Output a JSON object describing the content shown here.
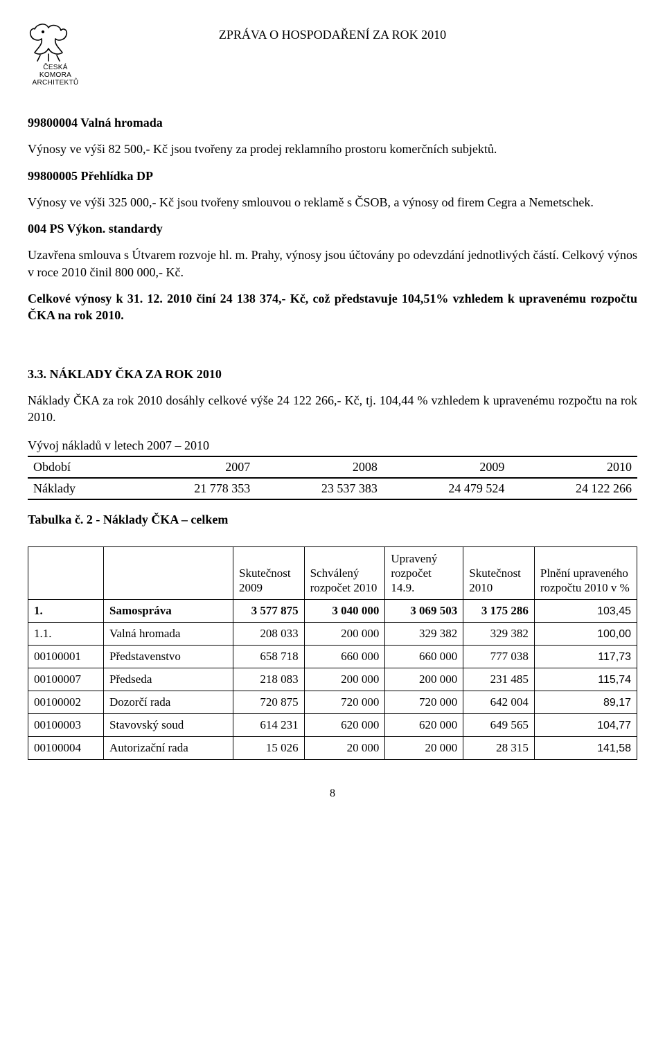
{
  "header": {
    "logo_caption_line1": "ČESKÁ KOMORA",
    "logo_caption_line2": "ARCHITEKTŮ",
    "report_title": "ZPRÁVA O HOSPODAŘENÍ ZA  ROK 2010"
  },
  "body": {
    "p1_heading": "99800004 Valná hromada",
    "p1_text": "Výnosy ve výši 82 500,- Kč jsou tvořeny za prodej reklamního prostoru komerčních subjektů.",
    "p2_heading": "99800005 Přehlídka DP",
    "p2_text": "Výnosy ve výši 325 000,- Kč jsou tvořeny smlouvou o reklamě s ČSOB, a výnosy od firem Cegra a  Nemetschek.",
    "p3_heading": "004 PS Výkon. standardy",
    "p3_text": "Uzavřena smlouva s Útvarem rozvoje hl. m. Prahy, výnosy jsou účtovány po odevzdání jednotlivých částí. Celkový výnos  v roce 2010 činil 800 000,- Kč.",
    "p4_bold": "Celkové výnosy k 31. 12. 2010 činí 24 138 374,- Kč, což představuje 104,51% vzhledem k upravenému  rozpočtu ČKA na rok 2010.",
    "section33_title": "3.3.   NÁKLADY ČKA  ZA  ROK 2010",
    "p5_text": "Náklady ČKA za rok 2010 dosáhly celkové výše 24 122 266,- Kč, tj. 104,44 % vzhledem k upravenému rozpočtu na rok 2010.",
    "period_caption": "Vývoj nákladů v letech 2007 – 2010"
  },
  "period_table": {
    "row1": [
      "Období",
      "2007",
      "2008",
      "2009",
      "2010"
    ],
    "row2": [
      "Náklady",
      "21 778 353",
      "23 537 383",
      "24 479 524",
      "24 122 266"
    ]
  },
  "table2_caption": "Tabulka č. 2 - Náklady ČKA – celkem",
  "main_table": {
    "headers": {
      "col1": "",
      "col2": "",
      "col3": "Skutečnost 2009",
      "col4": "Schválený rozpočet 2010",
      "col5": "Upravený rozpočet 14.9.",
      "col6": "Skutečnost 2010",
      "col7": "Plnění upraveného rozpočtu 2010 v %"
    },
    "rows": [
      {
        "code": "1.",
        "name": "Samospráva",
        "c3": "3 577 875",
        "c4": "3 040 000",
        "c5": "3 069 503",
        "c6": "3 175 286",
        "c7": "103,45",
        "bold": true
      },
      {
        "code": "1.1.",
        "name": "Valná hromada",
        "c3": "208 033",
        "c4": "200 000",
        "c5": "329 382",
        "c6": "329 382",
        "c7": "100,00"
      },
      {
        "code": "00100001",
        "name": "Představenstvo",
        "c3": "658 718",
        "c4": "660 000",
        "c5": "660 000",
        "c6": "777 038",
        "c7": "117,73"
      },
      {
        "code": "00100007",
        "name": "Předseda",
        "c3": "218 083",
        "c4": "200 000",
        "c5": "200 000",
        "c6": "231 485",
        "c7": "115,74"
      },
      {
        "code": "00100002",
        "name": "Dozorčí rada",
        "c3": "720 875",
        "c4": "720 000",
        "c5": "720 000",
        "c6": "642 004",
        "c7": "89,17"
      },
      {
        "code": "00100003",
        "name": "Stavovský soud",
        "c3": "614 231",
        "c4": "620 000",
        "c5": "620 000",
        "c6": "649 565",
        "c7": "104,77"
      },
      {
        "code": "00100004",
        "name": "Autorizační rada",
        "c3": "15 026",
        "c4": "20 000",
        "c5": "20 000",
        "c6": "28 315",
        "c7": "141,58"
      }
    ]
  },
  "page_number": "8",
  "style": {
    "text_color": "#000000",
    "background": "#ffffff",
    "base_font_size_pt": 13,
    "sans_font_size_pt": 12,
    "border_color": "#000000"
  }
}
